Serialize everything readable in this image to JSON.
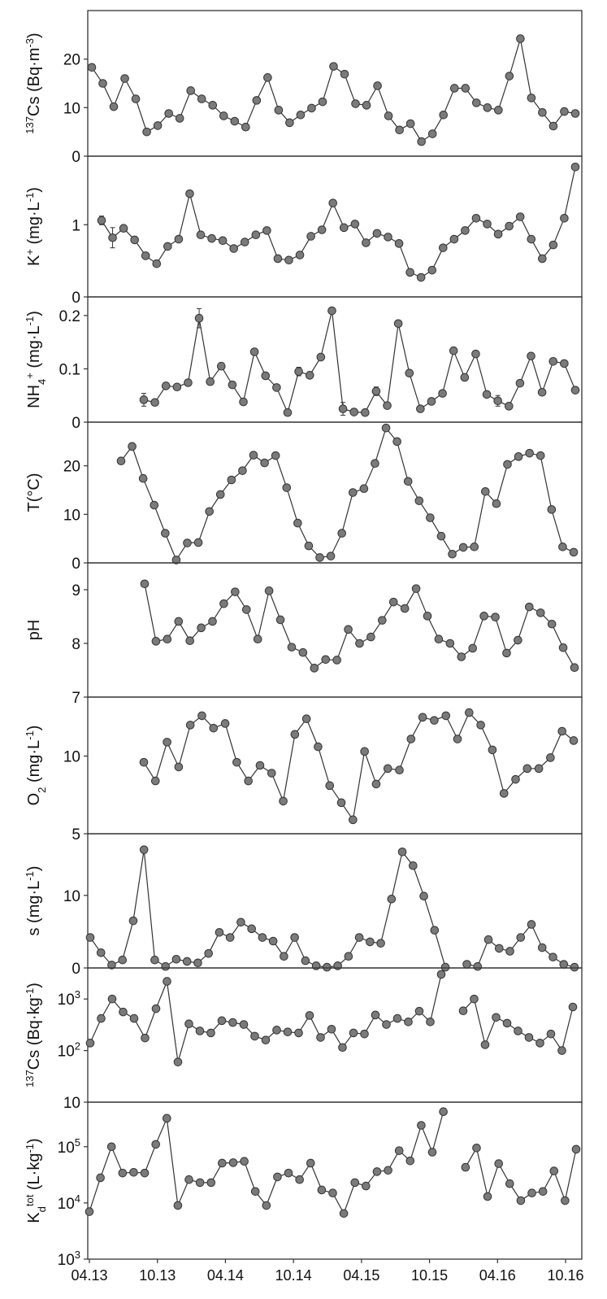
{
  "chart_data": {
    "type": "line",
    "x_tick_labels": [
      "04.13",
      "10.13",
      "04.14",
      "10.14",
      "04.15",
      "10.15",
      "04.16",
      "10.16"
    ],
    "panels": [
      {
        "id": "cs137_water",
        "ylabel_parts": [
          {
            "t": "137",
            "sup": true
          },
          {
            "t": "Cs (Bq·m"
          },
          {
            "t": "-3",
            "sup": true
          },
          {
            "t": ")"
          }
        ],
        "scale": "linear",
        "ylim": [
          0,
          30
        ],
        "yticks": [
          {
            "v": 0,
            "label": "0"
          },
          {
            "v": 10,
            "label": "10"
          },
          {
            "v": 20,
            "label": "20"
          }
        ],
        "values": [
          18.3,
          15.0,
          10.2,
          16.0,
          11.8,
          5.0,
          6.3,
          8.8,
          7.8,
          13.5,
          11.8,
          10.5,
          8.3,
          7.2,
          6.0,
          11.5,
          16.2,
          9.5,
          6.9,
          8.5,
          9.9,
          11.2,
          18.5,
          16.9,
          10.8,
          10.5,
          14.5,
          8.3,
          5.4,
          6.7,
          3.0,
          4.6,
          8.5,
          14.0,
          14.0,
          11.0,
          10.0,
          9.5,
          16.5,
          24.2,
          12.0,
          9.0,
          6.2,
          9.2,
          8.8
        ]
      },
      {
        "id": "potassium",
        "ylabel_parts": [
          {
            "t": "K"
          },
          {
            "t": "+",
            "sup": true
          },
          {
            "t": " (mg·L"
          },
          {
            "t": "-1",
            "sup": true
          },
          {
            "t": ")"
          }
        ],
        "scale": "linear",
        "ylim": [
          0,
          1.95
        ],
        "yticks": [
          {
            "v": 0,
            "label": "0"
          },
          {
            "v": 1,
            "label": "1"
          }
        ],
        "values": [
          1.06,
          0.82,
          0.95,
          0.79,
          0.57,
          0.46,
          0.7,
          0.8,
          1.43,
          0.86,
          0.81,
          0.78,
          0.67,
          0.76,
          0.86,
          0.92,
          0.53,
          0.51,
          0.58,
          0.84,
          0.93,
          1.3,
          0.96,
          1.01,
          0.75,
          0.88,
          0.83,
          0.74,
          0.34,
          0.27,
          0.37,
          0.68,
          0.8,
          0.92,
          1.09,
          1.01,
          0.87,
          0.98,
          1.11,
          0.8,
          0.53,
          0.72,
          1.09,
          1.8
        ],
        "error_bars": [
          {
            "index": 0,
            "err": 0.06
          },
          {
            "index": 1,
            "err": 0.14
          }
        ]
      },
      {
        "id": "ammonium",
        "ylabel_parts": [
          {
            "t": "NH"
          },
          {
            "t": "4",
            "sub": true
          },
          {
            "t": "+",
            "sup": true
          },
          {
            "t": " (mg·L"
          },
          {
            "t": "-1",
            "sup": true
          },
          {
            "t": ")"
          }
        ],
        "scale": "linear",
        "ylim": [
          0,
          0.235
        ],
        "yticks": [
          {
            "v": 0,
            "label": "0"
          },
          {
            "v": 0.1,
            "label": "0.1"
          },
          {
            "v": 0.2,
            "label": "0.2"
          }
        ],
        "values": [
          0.042,
          0.037,
          0.068,
          0.066,
          0.074,
          0.195,
          0.076,
          0.105,
          0.07,
          0.038,
          0.132,
          0.087,
          0.065,
          0.018,
          0.095,
          0.088,
          0.122,
          0.209,
          0.025,
          0.019,
          0.018,
          0.058,
          0.031,
          0.185,
          0.092,
          0.025,
          0.039,
          0.054,
          0.134,
          0.084,
          0.128,
          0.052,
          0.04,
          0.03,
          0.073,
          0.124,
          0.056,
          0.114,
          0.11,
          0.06
        ],
        "error_bars": [
          {
            "index": 0,
            "err": 0.012
          },
          {
            "index": 5,
            "err": 0.018
          },
          {
            "index": 14,
            "err": 0.008
          },
          {
            "index": 18,
            "err": 0.012
          },
          {
            "index": 21,
            "err": 0.008
          },
          {
            "index": 32,
            "err": 0.01
          }
        ]
      },
      {
        "id": "temperature",
        "ylabel_parts": [
          {
            "t": "T(°C)"
          }
        ],
        "scale": "linear",
        "ylim": [
          0,
          29
        ],
        "yticks": [
          {
            "v": 0,
            "label": "0"
          },
          {
            "v": 10,
            "label": "10"
          },
          {
            "v": 20,
            "label": "20"
          }
        ],
        "values": [
          21.0,
          24.0,
          17.4,
          11.9,
          6.1,
          0.6,
          4.1,
          4.2,
          10.6,
          14.1,
          17.1,
          19.0,
          22.2,
          20.6,
          22.1,
          15.5,
          8.2,
          3.5,
          1.1,
          1.4,
          6.1,
          14.5,
          15.3,
          20.5,
          27.8,
          25.0,
          16.8,
          12.8,
          9.3,
          5.5,
          1.8,
          3.2,
          3.3,
          14.7,
          12.2,
          20.3,
          21.9,
          22.6,
          22.1,
          11.0,
          3.3,
          2.2
        ]
      },
      {
        "id": "ph",
        "ylabel_parts": [
          {
            "t": "pH"
          }
        ],
        "scale": "linear",
        "ylim": [
          7,
          9.5
        ],
        "yticks": [
          {
            "v": 7,
            "label": "7"
          },
          {
            "v": 8,
            "label": "8"
          },
          {
            "v": 9,
            "label": "9"
          }
        ],
        "values": [
          9.11,
          8.04,
          8.08,
          8.41,
          8.05,
          8.29,
          8.41,
          8.74,
          8.96,
          8.63,
          8.08,
          8.98,
          8.44,
          7.93,
          7.83,
          7.54,
          7.7,
          7.69,
          8.26,
          8.0,
          8.12,
          8.43,
          8.77,
          8.65,
          9.02,
          8.51,
          8.08,
          8.0,
          7.75,
          7.91,
          8.51,
          8.49,
          7.82,
          8.06,
          8.68,
          8.57,
          8.36,
          7.92,
          7.55
        ]
      },
      {
        "id": "oxygen",
        "ylabel_parts": [
          {
            "t": "O"
          },
          {
            "t": "2",
            "sub": true
          },
          {
            "t": " (mg·L"
          },
          {
            "t": "-1",
            "sup": true
          },
          {
            "t": ")"
          }
        ],
        "scale": "linear",
        "ylim": [
          5,
          13.8
        ],
        "yticks": [
          {
            "v": 5,
            "label": "5"
          },
          {
            "v": 10,
            "label": "10"
          }
        ],
        "values": [
          9.6,
          8.4,
          10.9,
          9.3,
          12.0,
          12.6,
          11.8,
          12.1,
          9.6,
          8.4,
          9.4,
          8.9,
          7.1,
          11.4,
          12.4,
          10.6,
          8.1,
          7.0,
          5.9,
          10.3,
          8.2,
          9.2,
          9.1,
          11.1,
          12.5,
          12.3,
          12.6,
          11.1,
          12.8,
          12.0,
          10.4,
          7.6,
          8.5,
          9.2,
          9.2,
          9.9,
          11.6,
          11.0
        ]
      },
      {
        "id": "suspended_matter",
        "ylabel_parts": [
          {
            "t": "s (mg·L"
          },
          {
            "t": "-1",
            "sup": true
          },
          {
            "t": ")"
          }
        ],
        "scale": "linear",
        "ylim": [
          0,
          18.5
        ],
        "yticks": [
          {
            "v": 0,
            "label": "0"
          },
          {
            "v": 10,
            "label": "10"
          }
        ],
        "values": [
          4.2,
          2.1,
          0.4,
          1.1,
          6.5,
          16.3,
          1.1,
          0.2,
          1.2,
          0.9,
          0.7,
          2.0,
          4.9,
          4.2,
          6.3,
          5.4,
          4.2,
          3.7,
          1.6,
          4.2,
          1.0,
          0.3,
          0.1,
          0.3,
          1.6,
          4.2,
          3.6,
          3.4,
          9.5,
          16.0,
          14.1,
          9.9,
          5.2,
          0.1,
          null,
          0.5,
          0.2,
          3.9,
          2.7,
          2.3,
          4.2,
          6.0,
          2.8,
          1.5,
          0.5,
          0.1
        ]
      },
      {
        "id": "cs137_particulate",
        "ylabel_parts": [
          {
            "t": "137",
            "sup": true
          },
          {
            "t": "Cs (Bq·kg"
          },
          {
            "t": "-1",
            "sup": true
          },
          {
            "t": ")"
          }
        ],
        "scale": "log",
        "ylim": [
          10,
          4000
        ],
        "yticks": [
          {
            "v": 10,
            "label": "10"
          },
          {
            "v": 100,
            "label": "10",
            "exp": "2"
          },
          {
            "v": 1000,
            "label": "10",
            "exp": "3"
          }
        ],
        "values": [
          140,
          420,
          1000,
          560,
          420,
          175,
          650,
          2200,
          60,
          330,
          240,
          220,
          380,
          350,
          320,
          190,
          160,
          250,
          230,
          220,
          480,
          180,
          260,
          115,
          220,
          210,
          490,
          320,
          420,
          360,
          580,
          360,
          3000,
          null,
          590,
          1000,
          130,
          440,
          340,
          240,
          180,
          140,
          210,
          100,
          700
        ]
      },
      {
        "id": "kd_tot",
        "ylabel_parts": [
          {
            "t": "K"
          },
          {
            "t": "d",
            "sub": true
          },
          {
            "t": "tot",
            "sup": true
          },
          {
            "t": " (L·kg"
          },
          {
            "t": "-1",
            "sup": true
          },
          {
            "t": ")"
          }
        ],
        "scale": "log",
        "ylim": [
          1000,
          620000
        ],
        "yticks": [
          {
            "v": 1000,
            "label": "10",
            "exp": "3"
          },
          {
            "v": 10000,
            "label": "10",
            "exp": "4"
          },
          {
            "v": 100000,
            "label": "10",
            "exp": "5"
          }
        ],
        "values": [
          7000,
          28000,
          100000,
          34000,
          35000,
          34000,
          110000,
          320000,
          9000,
          26000,
          23000,
          23000,
          51000,
          52000,
          55000,
          16000,
          9000,
          29000,
          34000,
          26000,
          51000,
          17000,
          15000,
          6500,
          23000,
          20000,
          36000,
          38000,
          85000,
          56000,
          240000,
          80000,
          420000,
          null,
          43000,
          95000,
          13000,
          50000,
          22000,
          11000,
          15000,
          16000,
          37000,
          11000,
          90000
        ]
      }
    ]
  }
}
